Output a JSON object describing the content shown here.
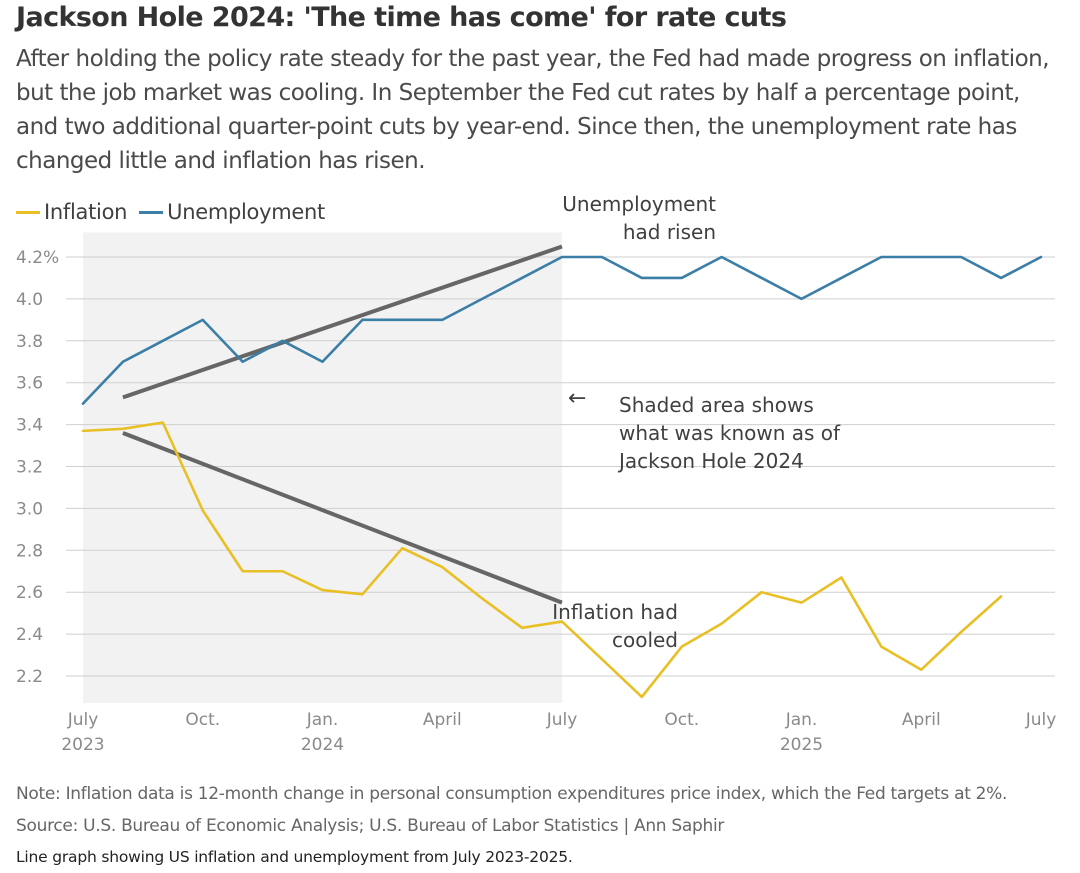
{
  "header": {
    "title": "Jackson Hole 2024: 'The time has come' for rate cuts",
    "subtitle": "After holding the policy rate steady for the past year, the Fed had made progress on inflation, but the job market was cooling. In September the Fed cut rates by half a percentage point, and two additional quarter-point cuts by year-end. Since then, the unemployment rate has changed little and inflation has risen."
  },
  "chart_data": {
    "type": "line",
    "x": [
      "2023-07",
      "2023-08",
      "2023-09",
      "2023-10",
      "2023-11",
      "2023-12",
      "2024-01",
      "2024-02",
      "2024-03",
      "2024-04",
      "2024-05",
      "2024-06",
      "2024-07",
      "2024-08",
      "2024-09",
      "2024-10",
      "2024-11",
      "2024-12",
      "2025-01",
      "2025-02",
      "2025-03",
      "2025-04",
      "2025-05",
      "2025-06",
      "2025-07"
    ],
    "series": [
      {
        "name": "Inflation",
        "color": "#e8c025",
        "values": [
          3.37,
          3.38,
          3.41,
          2.99,
          2.7,
          2.7,
          2.61,
          2.59,
          2.81,
          2.72,
          2.57,
          2.43,
          2.46,
          2.28,
          2.1,
          2.34,
          2.45,
          2.6,
          2.55,
          2.67,
          2.34,
          2.23,
          2.41,
          2.58,
          null
        ]
      },
      {
        "name": "Unemployment",
        "color": "#3b7ea6",
        "values": [
          3.5,
          3.7,
          3.8,
          3.9,
          3.7,
          3.8,
          3.7,
          3.9,
          3.9,
          3.9,
          4.0,
          4.1,
          4.2,
          4.2,
          4.1,
          4.1,
          4.2,
          4.1,
          4.0,
          4.1,
          4.2,
          4.2,
          4.2,
          4.1,
          4.2
        ]
      }
    ],
    "trend_lines": [
      {
        "from": [
          "2023-08",
          3.53
        ],
        "to": [
          "2024-07",
          4.25
        ],
        "color": "#666666"
      },
      {
        "from": [
          "2023-08",
          3.36
        ],
        "to": [
          "2024-07",
          2.55
        ],
        "color": "#666666"
      }
    ],
    "shaded_range": {
      "from": "2023-07",
      "to": "2024-07",
      "color": "#f2f2f2"
    },
    "ylim": [
      2.1,
      4.25
    ],
    "yticks": [
      {
        "value": 4.2,
        "label": "4.2%"
      },
      {
        "value": 4.0,
        "label": "4.0"
      },
      {
        "value": 3.8,
        "label": "3.8"
      },
      {
        "value": 3.6,
        "label": "3.6"
      },
      {
        "value": 3.4,
        "label": "3.4"
      },
      {
        "value": 3.2,
        "label": "3.2"
      },
      {
        "value": 3.0,
        "label": "3.0"
      },
      {
        "value": 2.8,
        "label": "2.8"
      },
      {
        "value": 2.6,
        "label": "2.6"
      },
      {
        "value": 2.4,
        "label": "2.4"
      },
      {
        "value": 2.2,
        "label": "2.2"
      }
    ],
    "xticks": [
      {
        "at": "2023-07",
        "label": "July",
        "sublabel": "2023"
      },
      {
        "at": "2023-10",
        "label": "Oct.",
        "sublabel": ""
      },
      {
        "at": "2024-01",
        "label": "Jan.",
        "sublabel": "2024"
      },
      {
        "at": "2024-04",
        "label": "April",
        "sublabel": ""
      },
      {
        "at": "2024-07",
        "label": "July",
        "sublabel": ""
      },
      {
        "at": "2024-10",
        "label": "Oct.",
        "sublabel": ""
      },
      {
        "at": "2025-01",
        "label": "Jan.",
        "sublabel": "2025"
      },
      {
        "at": "2025-04",
        "label": "April",
        "sublabel": ""
      },
      {
        "at": "2025-07",
        "label": "July",
        "sublabel": ""
      }
    ],
    "annotations": [
      {
        "lines": [
          "Unemployment",
          "had risen"
        ],
        "align": "right"
      },
      {
        "lines": [
          "Shaded area shows",
          "what was known as of",
          "Jackson Hole 2024"
        ],
        "align": "left",
        "arrow": "←"
      },
      {
        "lines": [
          "Inflation had",
          "cooled"
        ],
        "align": "right"
      }
    ],
    "grid": true,
    "legend_position": "top-left"
  },
  "footer": {
    "note": "Note: Inflation data is 12-month change in personal consumption expenditures price index, which the Fed targets at 2%.",
    "source": "Source: U.S. Bureau of Economic Analysis; U.S. Bureau of Labor Statistics | Ann Saphir",
    "description": "Line graph showing US inflation and unemployment from July 2023-2025."
  }
}
